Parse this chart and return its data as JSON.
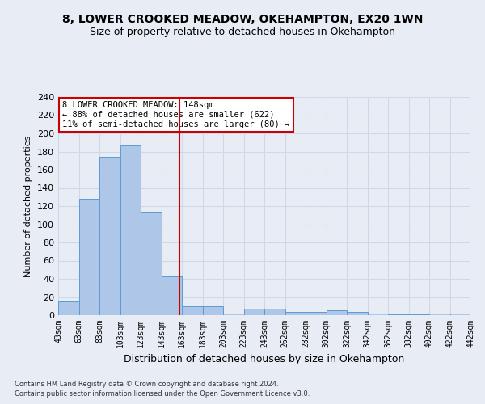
{
  "title1": "8, LOWER CROOKED MEADOW, OKEHAMPTON, EX20 1WN",
  "title2": "Size of property relative to detached houses in Okehampton",
  "xlabel": "Distribution of detached houses by size in Okehampton",
  "ylabel": "Number of detached properties",
  "footnote1": "Contains HM Land Registry data © Crown copyright and database right 2024.",
  "footnote2": "Contains public sector information licensed under the Open Government Licence v3.0.",
  "bin_labels": [
    "43sqm",
    "63sqm",
    "83sqm",
    "103sqm",
    "123sqm",
    "143sqm",
    "163sqm",
    "183sqm",
    "203sqm",
    "223sqm",
    "243sqm",
    "262sqm",
    "282sqm",
    "302sqm",
    "322sqm",
    "342sqm",
    "362sqm",
    "382sqm",
    "402sqm",
    "422sqm",
    "442sqm"
  ],
  "bar_values": [
    15,
    128,
    174,
    187,
    114,
    43,
    10,
    10,
    2,
    7,
    7,
    4,
    4,
    5,
    4,
    2,
    1,
    1,
    2,
    2
  ],
  "bar_color": "#aec6e8",
  "bar_edge_color": "#5b9bd5",
  "vline_color": "#cc0000",
  "vline_position": 5.4,
  "annotation_line1": "8 LOWER CROOKED MEADOW: 148sqm",
  "annotation_line2": "← 88% of detached houses are smaller (622)",
  "annotation_line3": "11% of semi-detached houses are larger (80) →",
  "annotation_box_color": "#ffffff",
  "annotation_border_color": "#cc0000",
  "ylim": [
    0,
    240
  ],
  "yticks": [
    0,
    20,
    40,
    60,
    80,
    100,
    120,
    140,
    160,
    180,
    200,
    220,
    240
  ],
  "grid_color": "#d0d8e8",
  "background_color": "#e8edf5",
  "title1_fontsize": 10,
  "title2_fontsize": 9,
  "ylabel_fontsize": 8,
  "xlabel_fontsize": 9
}
